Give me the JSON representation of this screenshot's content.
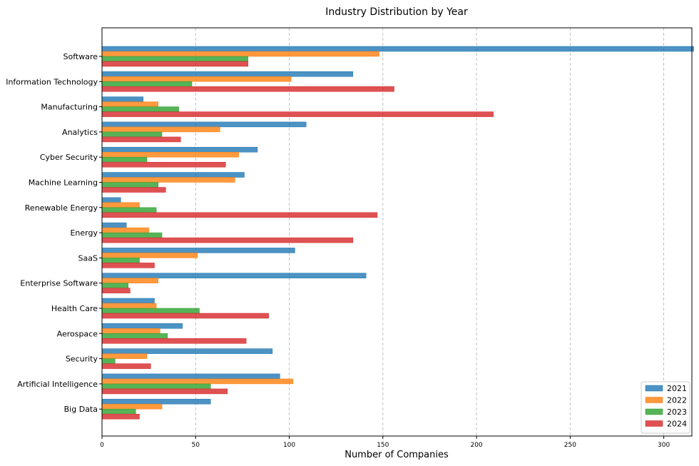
{
  "chart_data": {
    "type": "bar",
    "orientation": "horizontal",
    "title": "Industry Distribution by Year",
    "xlabel": "Number of Companies",
    "ylabel": "",
    "xlim": [
      0,
      315
    ],
    "xticks": [
      0,
      50,
      100,
      150,
      200,
      250,
      300
    ],
    "grid": "vertical dashed",
    "legend_position": "bottom-right",
    "categories": [
      "Software",
      "Information Technology",
      "Manufacturing",
      "Analytics",
      "Cyber Security",
      "Machine Learning",
      "Renewable Energy",
      "Energy",
      "SaaS",
      "Enterprise Software",
      "Health Care",
      "Aerospace",
      "Security",
      "Artificial Intelligence",
      "Big Data"
    ],
    "series": [
      {
        "name": "2021",
        "color": "#1f77b4",
        "values": [
          316,
          134,
          22,
          109,
          83,
          76,
          10,
          13,
          103,
          141,
          28,
          43,
          91,
          95,
          58
        ]
      },
      {
        "name": "2022",
        "color": "#ff7f0e",
        "values": [
          148,
          101,
          30,
          63,
          73,
          71,
          20,
          25,
          51,
          30,
          29,
          31,
          24,
          102,
          32
        ]
      },
      {
        "name": "2023",
        "color": "#2ca02c",
        "values": [
          78,
          48,
          41,
          32,
          24,
          30,
          29,
          32,
          20,
          14,
          52,
          35,
          7,
          58,
          18
        ]
      },
      {
        "name": "2024",
        "color": "#d62728",
        "values": [
          78,
          156,
          209,
          42,
          66,
          34,
          147,
          134,
          28,
          15,
          89,
          77,
          26,
          67,
          20
        ]
      }
    ]
  }
}
